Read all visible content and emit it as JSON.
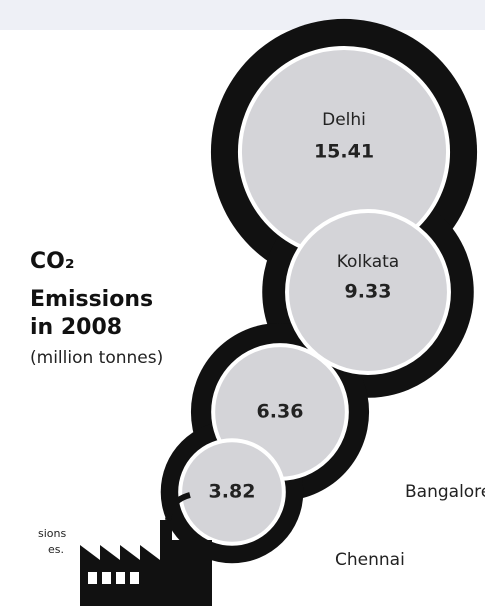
{
  "chart_data": {
    "type": "bubble",
    "title_lines": [
      "CO₂",
      "Emissions",
      "in 2008"
    ],
    "subtitle": "(million tonnes)",
    "categories": [
      "Delhi",
      "Kolkata",
      "Bangalore",
      "Chennai"
    ],
    "values": [
      15.41,
      9.33,
      6.36,
      3.82
    ],
    "color": "#d4d4d8",
    "fragments": [
      "sions",
      "es."
    ]
  }
}
